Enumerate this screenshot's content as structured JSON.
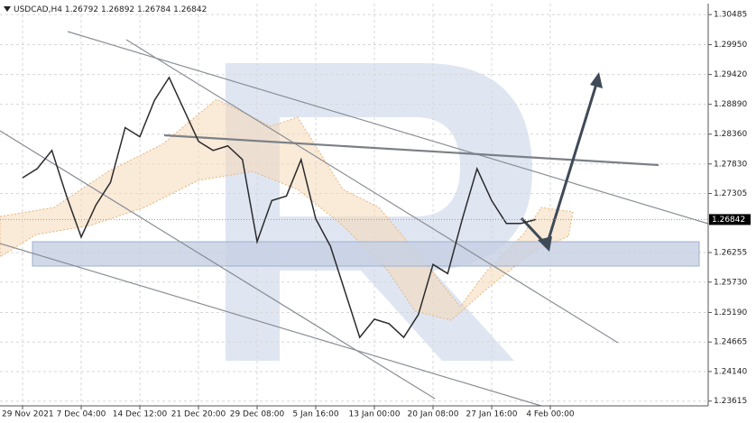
{
  "chart_data": {
    "type": "line",
    "symbol": "USDCAD,H4",
    "quote": [
      1.26792,
      1.26892,
      1.26784,
      1.26842
    ],
    "categories": [
      "29 Nov 2021",
      null,
      null,
      null,
      "7 Dec 04:00",
      null,
      null,
      null,
      "14 Dec 12:00",
      null,
      null,
      null,
      "21 Dec 20:00",
      null,
      null,
      null,
      "29 Dec 08:00",
      null,
      null,
      null,
      "5 Jan 16:00",
      null,
      null,
      null,
      "13 Jan 00:00",
      null,
      null,
      null,
      "20 Jan 08:00",
      null,
      null,
      null,
      "27 Jan 16:00",
      null,
      null,
      null,
      "4 Feb 00:00"
    ],
    "values": [
      1.27584,
      1.27746,
      1.2807,
      1.2726,
      1.2653,
      1.27098,
      1.27503,
      1.28475,
      1.28313,
      1.28962,
      1.29367,
      1.288,
      1.28232,
      1.2807,
      1.28151,
      1.27908,
      1.26449,
      1.27179,
      1.2726,
      1.27908,
      1.26854,
      1.26368,
      1.25558,
      1.24747,
      1.25071,
      1.2499,
      1.24747,
      1.25152,
      1.26044,
      1.25882,
      1.26854,
      1.27746,
      1.27179,
      1.26773,
      1.26773,
      1.26842,
      null
    ],
    "color": "#2b2b2b",
    "ylim": [
      1.2353,
      1.3068
    ],
    "yticks": [
      {
        "value": 1.23615,
        "label": "1.23615"
      },
      {
        "value": 1.2414,
        "label": "1.24140"
      },
      {
        "value": 1.24665,
        "label": "1.24665"
      },
      {
        "value": 1.2519,
        "label": "1.25190"
      },
      {
        "value": 1.2573,
        "label": "1.25730"
      },
      {
        "value": 1.26255,
        "label": "1.26255"
      },
      {
        "value": 1.27305,
        "label": "1.27305"
      },
      {
        "value": 1.2783,
        "label": "1.27830"
      },
      {
        "value": 1.2836,
        "label": "1.28360"
      },
      {
        "value": 1.2889,
        "label": "1.28890"
      },
      {
        "value": 1.2942,
        "label": "1.29420"
      },
      {
        "value": 1.2995,
        "label": "1.29950"
      },
      {
        "value": 1.30485,
        "label": "1.30485"
      }
    ],
    "grid": true
  }
}
